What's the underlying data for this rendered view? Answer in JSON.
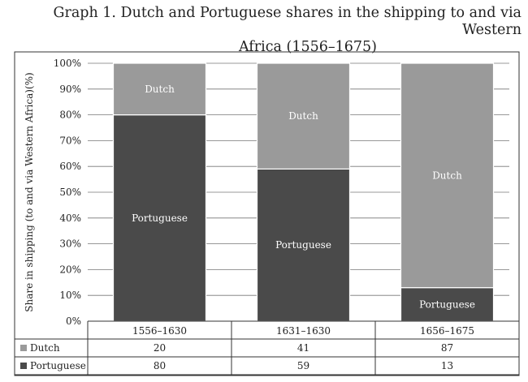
{
  "chart_data": {
    "type": "bar",
    "stacked": true,
    "orientation": "vertical",
    "percent_scale": true,
    "title_line1": "Graph 1. Dutch and Portuguese shares in the shipping to and via Western",
    "title_line2": "Africa (1556–1675)",
    "ylabel": "Share in shipping (to and via Western Africa)(%)",
    "xlabel": "",
    "ylim": [
      0,
      100
    ],
    "ytick_labels": [
      "0%",
      "10%",
      "20%",
      "30%",
      "40%",
      "50%",
      "60%",
      "70%",
      "80%",
      "90%",
      "100%"
    ],
    "categories": [
      "1556–1630",
      "1631–1630",
      "1656–1675"
    ],
    "series": [
      {
        "name": "Portuguese",
        "values": [
          80,
          59,
          13
        ],
        "color": "#4a4a4a",
        "label_color": "#ffffff"
      },
      {
        "name": "Dutch",
        "values": [
          20,
          41,
          87
        ],
        "color": "#9a9a9a",
        "label_color": "#ffffff"
      }
    ],
    "data_table": {
      "rows": [
        {
          "series": "Dutch",
          "label": "Dutch",
          "values": [
            "20",
            "41",
            "87"
          ]
        },
        {
          "series": "Portuguese",
          "label": "Portuguese",
          "values": [
            "80",
            "59",
            "13"
          ]
        }
      ]
    },
    "grid": true,
    "legend": "in data table at bottom-left"
  }
}
